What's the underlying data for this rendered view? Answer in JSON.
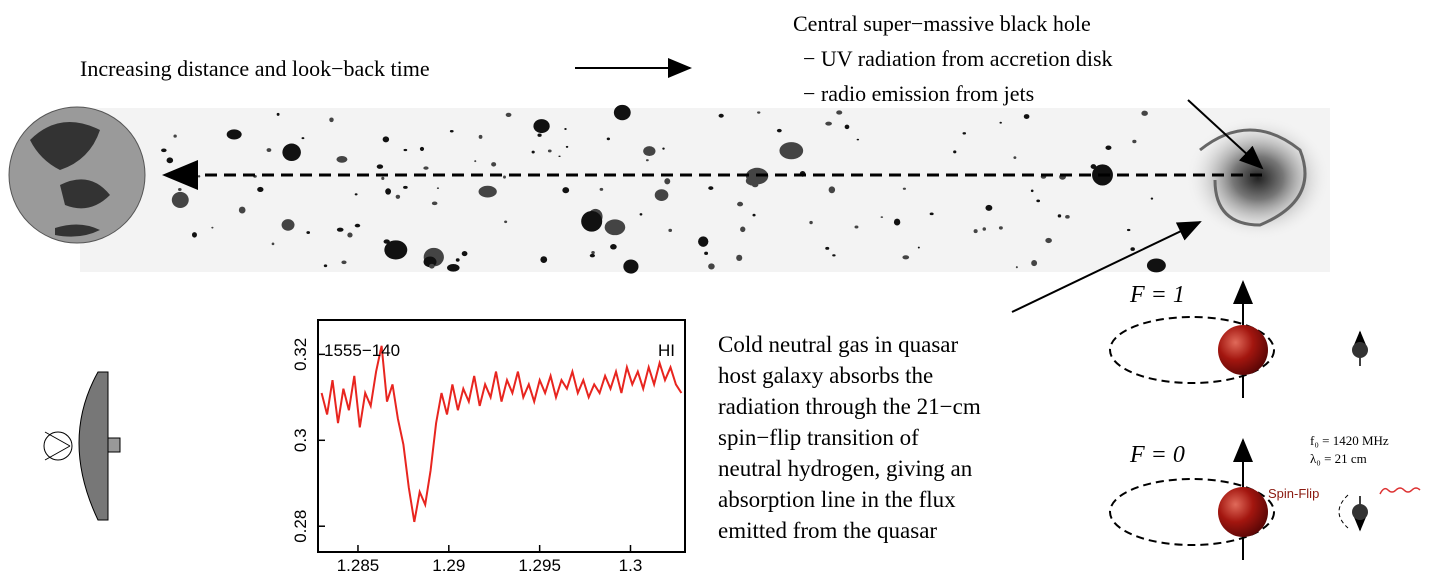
{
  "distance_label": "Increasing distance and look−back time",
  "black_hole_notes": [
    "Central super−massive black hole",
    "− UV radiation from accretion disk",
    "− radio emission from jets"
  ],
  "absorption_note": [
    "Cold neutral gas in quasar",
    "host galaxy absorbs the",
    "radiation through the 21−cm",
    "spin−flip transition of",
    "neutral hydrogen, giving an",
    "absorption line in the flux",
    "emitted from the quasar"
  ],
  "hyperfine": {
    "upper_state": "F = 1",
    "lower_state": "F = 0",
    "frequency": "f₀ = 1420 MHz",
    "wavelength": "λ₀ = 21 cm",
    "transition": "Spin-Flip"
  },
  "chart_data": {
    "type": "line",
    "annotations": [
      "1555−140",
      "HI"
    ],
    "color": "#e8251f",
    "x": [
      1.283,
      1.2833,
      1.2836,
      1.2839,
      1.2842,
      1.2845,
      1.2848,
      1.2851,
      1.2854,
      1.2857,
      1.286,
      1.2863,
      1.2866,
      1.2869,
      1.2872,
      1.2875,
      1.2878,
      1.2881,
      1.2884,
      1.2887,
      1.289,
      1.2893,
      1.2896,
      1.2899,
      1.2902,
      1.2905,
      1.2908,
      1.2911,
      1.2914,
      1.2917,
      1.292,
      1.2923,
      1.2926,
      1.2929,
      1.2932,
      1.2935,
      1.2938,
      1.2941,
      1.2944,
      1.2947,
      1.295,
      1.2953,
      1.2956,
      1.2959,
      1.2962,
      1.2965,
      1.2968,
      1.2971,
      1.2974,
      1.2977,
      1.298,
      1.2983,
      1.2986,
      1.2989,
      1.2992,
      1.2995,
      1.2998,
      1.3001,
      1.3004,
      1.3007,
      1.301,
      1.3013,
      1.3016,
      1.3019,
      1.3022,
      1.3025,
      1.3028
    ],
    "values": [
      0.311,
      0.306,
      0.314,
      0.304,
      0.312,
      0.307,
      0.315,
      0.303,
      0.311,
      0.308,
      0.316,
      0.322,
      0.309,
      0.313,
      0.305,
      0.299,
      0.289,
      0.281,
      0.288,
      0.285,
      0.293,
      0.304,
      0.311,
      0.306,
      0.313,
      0.307,
      0.312,
      0.309,
      0.315,
      0.308,
      0.313,
      0.31,
      0.316,
      0.309,
      0.314,
      0.311,
      0.316,
      0.31,
      0.313,
      0.309,
      0.314,
      0.311,
      0.315,
      0.31,
      0.314,
      0.312,
      0.316,
      0.311,
      0.314,
      0.31,
      0.313,
      0.311,
      0.315,
      0.312,
      0.316,
      0.311,
      0.317,
      0.313,
      0.316,
      0.312,
      0.317,
      0.313,
      0.318,
      0.314,
      0.317,
      0.313,
      0.311
    ],
    "xlim": [
      1.2828,
      1.303
    ],
    "ylim": [
      0.274,
      0.328
    ],
    "xticks": [
      1.285,
      1.29,
      1.295,
      1.3
    ],
    "yticks": [
      0.28,
      0.3,
      0.32
    ]
  }
}
